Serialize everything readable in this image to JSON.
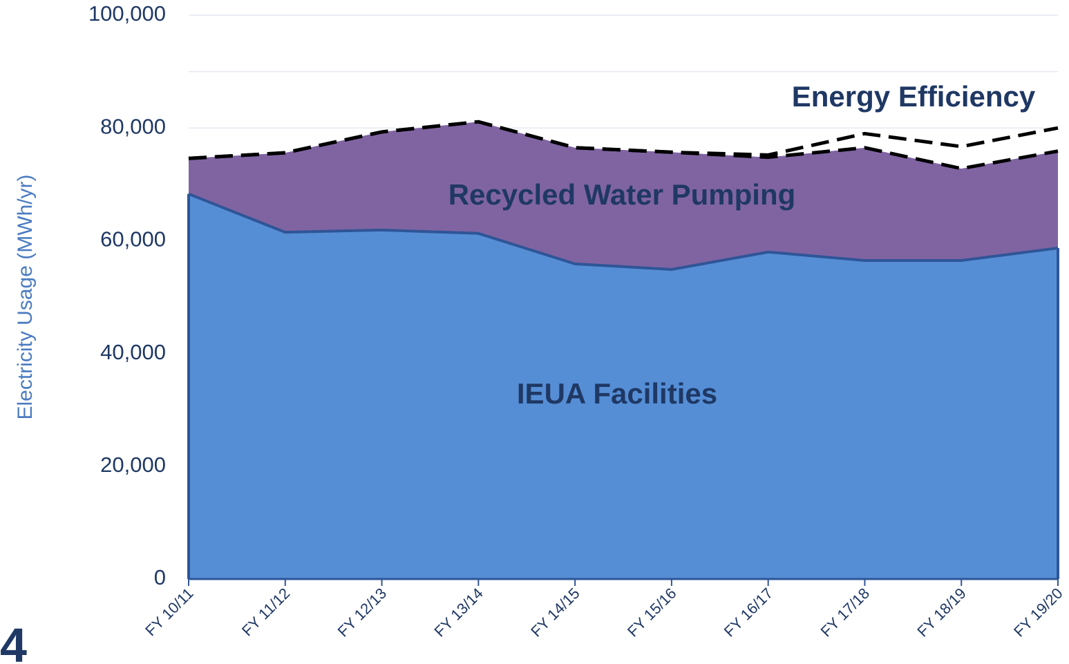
{
  "chart_data": {
    "type": "stacked_area",
    "y_label": "Electricity Usage (MWh/yr)",
    "categories": [
      "FY 10/11",
      "FY 11/12",
      "FY 12/13",
      "FY 13/14",
      "FY 14/15",
      "FY 15/16",
      "FY 16/17",
      "FY 17/18",
      "FY 18/19",
      "FY 19/20"
    ],
    "series": [
      {
        "name": "IEUA Facilities",
        "color": "#558ed5",
        "edge_color": "#2f5597",
        "line_style": "solid",
        "values": [
          68300,
          61500,
          61900,
          61300,
          55900,
          54900,
          58000,
          56500,
          56500,
          58700
        ]
      },
      {
        "name": "Recycled Water Pumping",
        "color": "#8064a2",
        "edge_color": "#000000",
        "line_style": "dashed",
        "values": [
          6300,
          14100,
          17400,
          19800,
          20600,
          20800,
          16800,
          20000,
          16300,
          17200
        ]
      },
      {
        "name": "Energy Efficiency",
        "color": "#ffffff",
        "edge_color": "#000000",
        "line_style": "dashed",
        "values": [
          0,
          0,
          0,
          0,
          0,
          0,
          400,
          2500,
          3900,
          4100
        ]
      }
    ],
    "ylim": [
      0,
      100000
    ],
    "yticks": [
      0,
      {
        "value": 20000,
        "label": "20,000"
      },
      {
        "value": 40000,
        "label": "40,000"
      },
      {
        "value": 60000,
        "label": "60,000"
      },
      {
        "value": 80000,
        "label": "80,000"
      },
      {
        "value": 100000,
        "label": "100,000"
      }
    ],
    "minor_yticks": [
      10000,
      30000,
      50000,
      70000,
      90000
    ],
    "grid": true
  },
  "page_number": "4"
}
